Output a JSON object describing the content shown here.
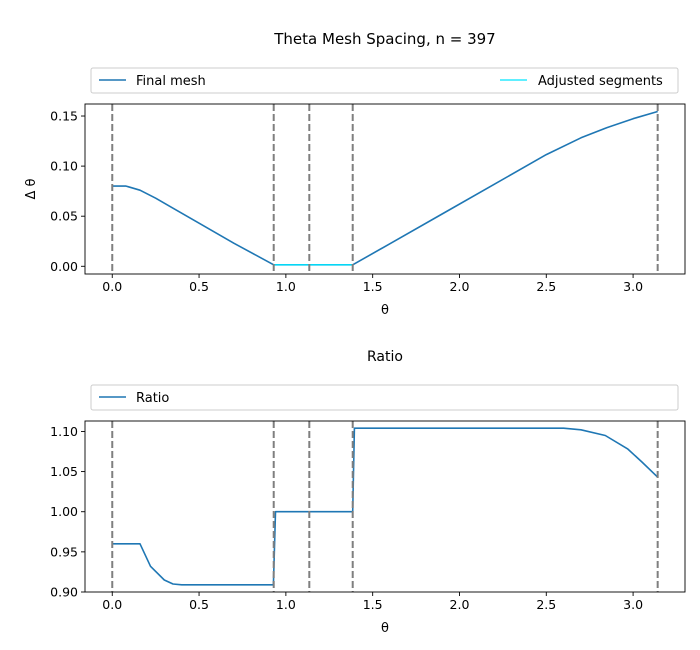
{
  "figure_title": "Theta Mesh Spacing, n = 397",
  "chart_data": [
    {
      "type": "line",
      "title": "",
      "xlabel": "θ",
      "ylabel": "Δ θ",
      "xlim": [
        -0.157,
        3.299
      ],
      "ylim": [
        -0.0077,
        0.162
      ],
      "xticks": [
        0.0,
        0.5,
        1.0,
        1.5,
        2.0,
        2.5,
        3.0
      ],
      "xtick_labels": [
        "0.0",
        "0.5",
        "1.0",
        "1.5",
        "2.0",
        "2.5",
        "3.0"
      ],
      "yticks": [
        0.0,
        0.05,
        0.1,
        0.15
      ],
      "ytick_labels": [
        "0.00",
        "0.05",
        "0.10",
        "0.15"
      ],
      "grid": false,
      "legend": {
        "placement": "top (above axes)",
        "entries": [
          "Final mesh",
          "Adjusted segments"
        ]
      },
      "vlines": [
        0.0,
        0.93,
        1.135,
        1.385,
        3.1416
      ],
      "series": [
        {
          "name": "Final mesh",
          "color": "#1f77b4",
          "x": [
            0.0,
            0.08,
            0.16,
            0.25,
            0.35,
            0.5,
            0.7,
            0.93,
            1.135,
            1.385,
            1.6,
            1.9,
            2.2,
            2.5,
            2.7,
            2.85,
            3.0,
            3.1416
          ],
          "y": [
            0.08,
            0.08,
            0.076,
            0.068,
            0.058,
            0.043,
            0.023,
            0.0015,
            0.0015,
            0.0015,
            0.0225,
            0.0522,
            0.0818,
            0.1115,
            0.1283,
            0.1384,
            0.1473,
            0.1545
          ]
        },
        {
          "name": "Adjusted segments",
          "color": "#00e5ff",
          "x": [
            0.93,
            1.385
          ],
          "y": [
            0.0015,
            0.0015
          ]
        }
      ]
    },
    {
      "type": "line",
      "title": "Ratio",
      "xlabel": "θ",
      "ylabel": "",
      "xlim": [
        -0.157,
        3.299
      ],
      "ylim": [
        0.9,
        1.113
      ],
      "xticks": [
        0.0,
        0.5,
        1.0,
        1.5,
        2.0,
        2.5,
        3.0
      ],
      "xtick_labels": [
        "0.0",
        "0.5",
        "1.0",
        "1.5",
        "2.0",
        "2.5",
        "3.0"
      ],
      "yticks": [
        0.9,
        0.95,
        1.0,
        1.05,
        1.1
      ],
      "ytick_labels": [
        "0.90",
        "0.95",
        "1.00",
        "1.05",
        "1.10"
      ],
      "grid": false,
      "legend": {
        "placement": "top (above axes)",
        "entries": [
          "Ratio"
        ]
      },
      "vlines": [
        0.0,
        0.93,
        1.135,
        1.385,
        3.1416
      ],
      "series": [
        {
          "name": "Ratio",
          "color": "#1f77b4",
          "x": [
            0.0,
            0.05,
            0.1,
            0.16,
            0.22,
            0.3,
            0.35,
            0.4,
            0.6,
            0.8,
            0.928,
            0.94,
            1.135,
            1.385,
            1.395,
            1.6,
            2.0,
            2.4,
            2.6,
            2.7,
            2.84,
            2.97,
            3.05,
            3.1416
          ],
          "y": [
            0.96,
            0.96,
            0.96,
            0.96,
            0.932,
            0.915,
            0.91,
            0.909,
            0.909,
            0.909,
            0.909,
            1.0,
            1.0,
            1.0,
            1.104,
            1.104,
            1.104,
            1.104,
            1.104,
            1.102,
            1.095,
            1.078,
            1.062,
            1.043
          ]
        }
      ]
    }
  ]
}
